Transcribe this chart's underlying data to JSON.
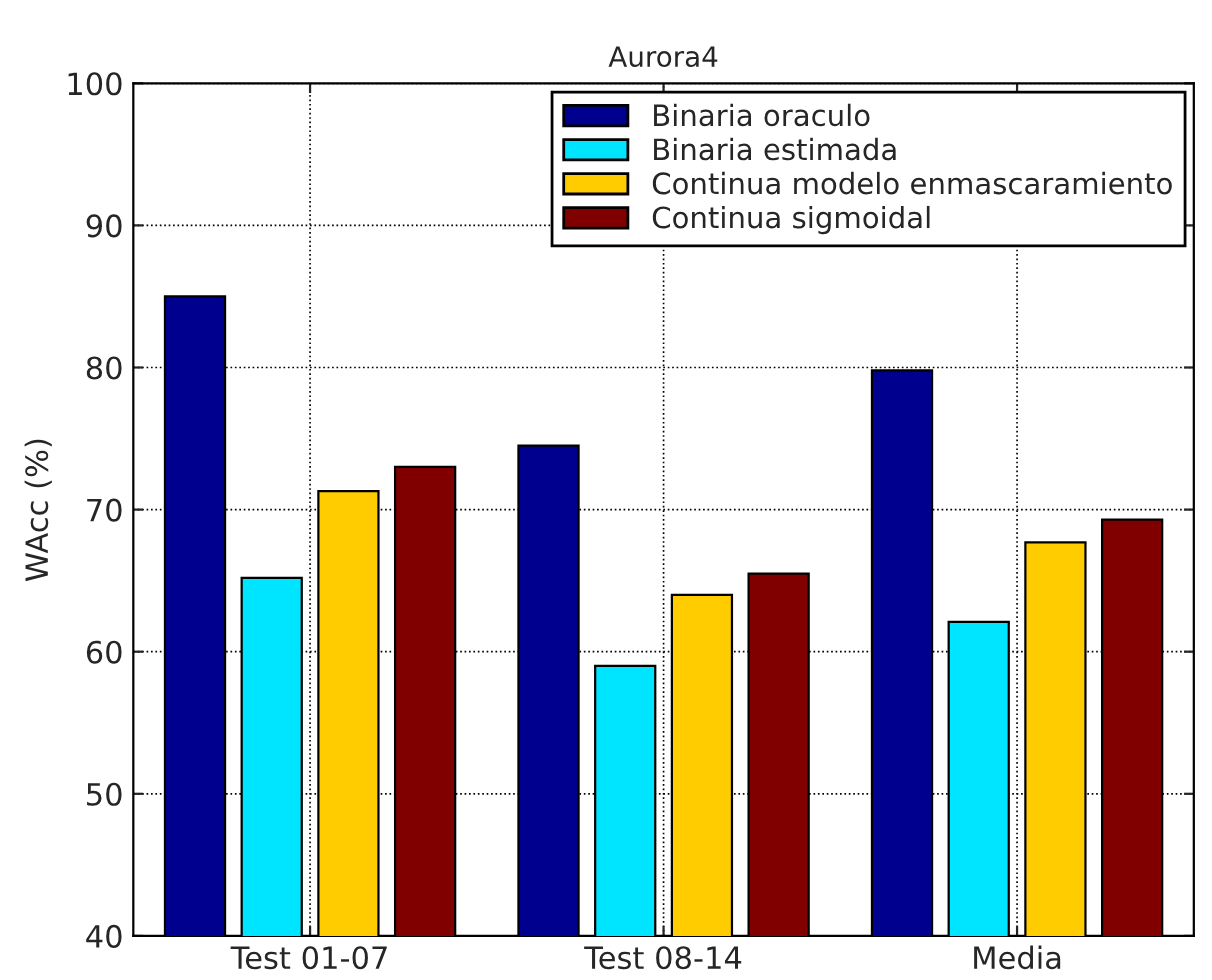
{
  "chart_data": {
    "type": "bar",
    "title": "Aurora4",
    "ylabel": "WAcc (%)",
    "categories": [
      "Test 01-07",
      "Test 08-14",
      "Media"
    ],
    "series": [
      {
        "name": "Binaria oraculo",
        "color": "#00008f",
        "values": [
          85.0,
          74.5,
          79.8
        ]
      },
      {
        "name": "Binaria estimada",
        "color": "#00e5ff",
        "values": [
          65.2,
          59.0,
          62.1
        ]
      },
      {
        "name": "Continua modelo enmascaramiento",
        "color": "#ffcc00",
        "values": [
          71.3,
          64.0,
          67.7
        ]
      },
      {
        "name": "Continua sigmoidal",
        "color": "#800000",
        "values": [
          73.0,
          65.5,
          69.3
        ]
      }
    ],
    "ylim": [
      40,
      100
    ],
    "yticks": [
      40,
      50,
      60,
      70,
      80,
      90,
      100
    ],
    "grid": true,
    "legend": "top right"
  }
}
